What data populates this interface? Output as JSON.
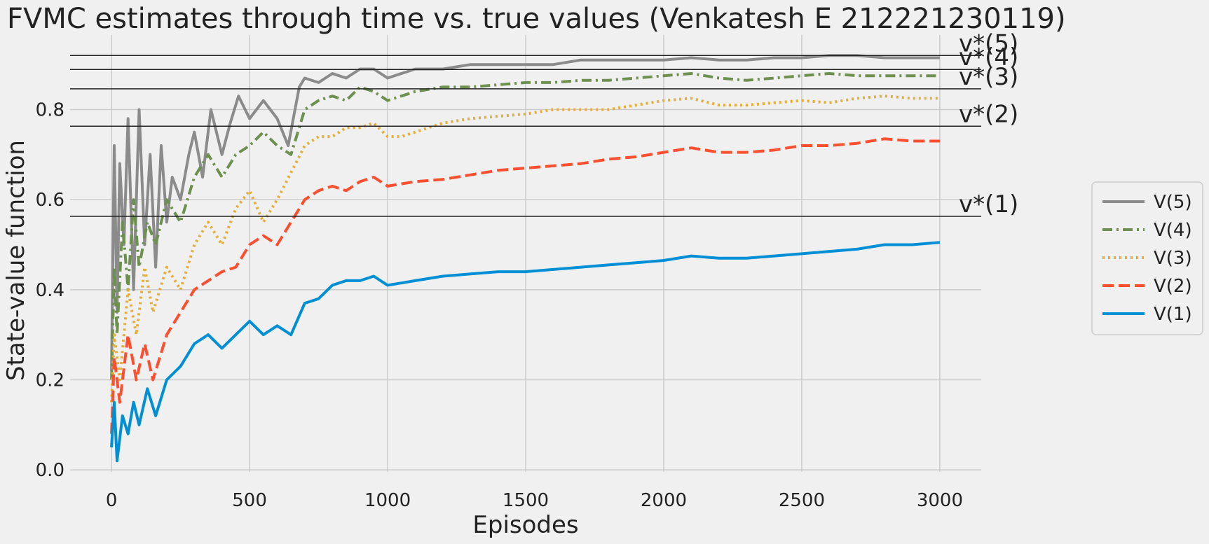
{
  "chart_data": {
    "type": "line",
    "title": "FVMC estimates through time vs. true values  (Venkatesh E 212221230119)",
    "xlabel": "Episodes",
    "ylabel": "State-value function",
    "xlim": [
      -150,
      3150
    ],
    "ylim": [
      -0.02,
      0.95
    ],
    "xticks": [
      0,
      500,
      1000,
      1500,
      2000,
      2500,
      3000
    ],
    "yticks": [
      0.0,
      0.2,
      0.4,
      0.6,
      0.8
    ],
    "grid": true,
    "legend_position": "right",
    "colors": {
      "background": "#f0f0f0",
      "grid": "#cbcbcb",
      "reference": "#222222"
    },
    "reference_lines": [
      {
        "label": "v*(5)",
        "y": 0.92
      },
      {
        "label": "v*(4)",
        "y": 0.889
      },
      {
        "label": "v*(3)",
        "y": 0.846
      },
      {
        "label": "v*(2)",
        "y": 0.763
      },
      {
        "label": "v*(1)",
        "y": 0.563
      }
    ],
    "series": [
      {
        "name": "V(5)",
        "color": "#8b8b8b",
        "dash": "solid",
        "points": [
          [
            0,
            0.22
          ],
          [
            10,
            0.72
          ],
          [
            20,
            0.35
          ],
          [
            30,
            0.68
          ],
          [
            45,
            0.5
          ],
          [
            60,
            0.78
          ],
          [
            80,
            0.4
          ],
          [
            100,
            0.8
          ],
          [
            120,
            0.5
          ],
          [
            140,
            0.7
          ],
          [
            160,
            0.45
          ],
          [
            180,
            0.72
          ],
          [
            200,
            0.55
          ],
          [
            220,
            0.65
          ],
          [
            250,
            0.6
          ],
          [
            280,
            0.7
          ],
          [
            300,
            0.75
          ],
          [
            330,
            0.65
          ],
          [
            360,
            0.8
          ],
          [
            400,
            0.7
          ],
          [
            430,
            0.77
          ],
          [
            460,
            0.83
          ],
          [
            500,
            0.78
          ],
          [
            550,
            0.82
          ],
          [
            600,
            0.78
          ],
          [
            640,
            0.72
          ],
          [
            680,
            0.85
          ],
          [
            700,
            0.87
          ],
          [
            750,
            0.86
          ],
          [
            800,
            0.88
          ],
          [
            850,
            0.87
          ],
          [
            900,
            0.89
          ],
          [
            950,
            0.89
          ],
          [
            1000,
            0.87
          ],
          [
            1050,
            0.88
          ],
          [
            1100,
            0.89
          ],
          [
            1200,
            0.89
          ],
          [
            1300,
            0.9
          ],
          [
            1400,
            0.9
          ],
          [
            1500,
            0.9
          ],
          [
            1600,
            0.9
          ],
          [
            1700,
            0.91
          ],
          [
            1800,
            0.91
          ],
          [
            1900,
            0.91
          ],
          [
            2000,
            0.91
          ],
          [
            2100,
            0.915
          ],
          [
            2200,
            0.91
          ],
          [
            2300,
            0.91
          ],
          [
            2400,
            0.915
          ],
          [
            2500,
            0.915
          ],
          [
            2600,
            0.92
          ],
          [
            2700,
            0.92
          ],
          [
            2800,
            0.915
          ],
          [
            2900,
            0.915
          ],
          [
            3000,
            0.915
          ]
        ]
      },
      {
        "name": "V(4)",
        "color": "#6d904f",
        "dash": "dashdot",
        "points": [
          [
            0,
            0.2
          ],
          [
            10,
            0.45
          ],
          [
            20,
            0.3
          ],
          [
            40,
            0.55
          ],
          [
            60,
            0.4
          ],
          [
            80,
            0.6
          ],
          [
            100,
            0.45
          ],
          [
            130,
            0.55
          ],
          [
            160,
            0.5
          ],
          [
            200,
            0.6
          ],
          [
            250,
            0.55
          ],
          [
            300,
            0.65
          ],
          [
            350,
            0.7
          ],
          [
            400,
            0.65
          ],
          [
            450,
            0.7
          ],
          [
            500,
            0.72
          ],
          [
            550,
            0.75
          ],
          [
            600,
            0.72
          ],
          [
            650,
            0.7
          ],
          [
            700,
            0.8
          ],
          [
            750,
            0.82
          ],
          [
            800,
            0.83
          ],
          [
            850,
            0.82
          ],
          [
            900,
            0.85
          ],
          [
            950,
            0.84
          ],
          [
            1000,
            0.82
          ],
          [
            1050,
            0.83
          ],
          [
            1100,
            0.84
          ],
          [
            1200,
            0.85
          ],
          [
            1300,
            0.85
          ],
          [
            1400,
            0.855
          ],
          [
            1500,
            0.86
          ],
          [
            1600,
            0.86
          ],
          [
            1700,
            0.865
          ],
          [
            1800,
            0.865
          ],
          [
            1900,
            0.87
          ],
          [
            2000,
            0.875
          ],
          [
            2100,
            0.88
          ],
          [
            2200,
            0.87
          ],
          [
            2300,
            0.865
          ],
          [
            2400,
            0.87
          ],
          [
            2500,
            0.875
          ],
          [
            2600,
            0.88
          ],
          [
            2700,
            0.875
          ],
          [
            2800,
            0.875
          ],
          [
            2900,
            0.875
          ],
          [
            3000,
            0.875
          ]
        ]
      },
      {
        "name": "V(3)",
        "color": "#e5ae38",
        "dash": "dotted",
        "points": [
          [
            0,
            0.15
          ],
          [
            10,
            0.3
          ],
          [
            30,
            0.2
          ],
          [
            60,
            0.4
          ],
          [
            90,
            0.3
          ],
          [
            120,
            0.45
          ],
          [
            150,
            0.35
          ],
          [
            200,
            0.45
          ],
          [
            250,
            0.4
          ],
          [
            300,
            0.5
          ],
          [
            350,
            0.55
          ],
          [
            400,
            0.5
          ],
          [
            450,
            0.58
          ],
          [
            500,
            0.62
          ],
          [
            550,
            0.55
          ],
          [
            600,
            0.6
          ],
          [
            650,
            0.66
          ],
          [
            700,
            0.72
          ],
          [
            750,
            0.74
          ],
          [
            800,
            0.74
          ],
          [
            850,
            0.76
          ],
          [
            900,
            0.76
          ],
          [
            950,
            0.77
          ],
          [
            1000,
            0.74
          ],
          [
            1050,
            0.74
          ],
          [
            1100,
            0.75
          ],
          [
            1200,
            0.77
          ],
          [
            1300,
            0.78
          ],
          [
            1400,
            0.785
          ],
          [
            1500,
            0.79
          ],
          [
            1600,
            0.8
          ],
          [
            1700,
            0.8
          ],
          [
            1800,
            0.8
          ],
          [
            1900,
            0.81
          ],
          [
            2000,
            0.82
          ],
          [
            2100,
            0.825
          ],
          [
            2200,
            0.81
          ],
          [
            2300,
            0.81
          ],
          [
            2400,
            0.815
          ],
          [
            2500,
            0.82
          ],
          [
            2600,
            0.815
          ],
          [
            2700,
            0.825
          ],
          [
            2800,
            0.83
          ],
          [
            2900,
            0.825
          ],
          [
            3000,
            0.825
          ]
        ]
      },
      {
        "name": "V(2)",
        "color": "#fc4f30",
        "dash": "dashed",
        "points": [
          [
            0,
            0.08
          ],
          [
            10,
            0.25
          ],
          [
            30,
            0.15
          ],
          [
            60,
            0.3
          ],
          [
            90,
            0.2
          ],
          [
            120,
            0.28
          ],
          [
            150,
            0.2
          ],
          [
            200,
            0.3
          ],
          [
            250,
            0.35
          ],
          [
            300,
            0.4
          ],
          [
            350,
            0.42
          ],
          [
            400,
            0.44
          ],
          [
            450,
            0.45
          ],
          [
            500,
            0.5
          ],
          [
            550,
            0.52
          ],
          [
            600,
            0.5
          ],
          [
            650,
            0.55
          ],
          [
            700,
            0.6
          ],
          [
            750,
            0.62
          ],
          [
            800,
            0.63
          ],
          [
            850,
            0.62
          ],
          [
            900,
            0.64
          ],
          [
            950,
            0.65
          ],
          [
            1000,
            0.63
          ],
          [
            1050,
            0.635
          ],
          [
            1100,
            0.64
          ],
          [
            1200,
            0.645
          ],
          [
            1300,
            0.655
          ],
          [
            1400,
            0.665
          ],
          [
            1500,
            0.67
          ],
          [
            1600,
            0.675
          ],
          [
            1700,
            0.68
          ],
          [
            1800,
            0.69
          ],
          [
            1900,
            0.695
          ],
          [
            2000,
            0.705
          ],
          [
            2100,
            0.715
          ],
          [
            2200,
            0.705
          ],
          [
            2300,
            0.705
          ],
          [
            2400,
            0.71
          ],
          [
            2500,
            0.72
          ],
          [
            2600,
            0.72
          ],
          [
            2700,
            0.725
          ],
          [
            2800,
            0.735
          ],
          [
            2900,
            0.73
          ],
          [
            3000,
            0.73
          ]
        ]
      },
      {
        "name": "V(1)",
        "color": "#008fd5",
        "dash": "solid",
        "points": [
          [
            0,
            0.05
          ],
          [
            10,
            0.15
          ],
          [
            20,
            0.02
          ],
          [
            40,
            0.12
          ],
          [
            60,
            0.08
          ],
          [
            80,
            0.15
          ],
          [
            100,
            0.1
          ],
          [
            130,
            0.18
          ],
          [
            160,
            0.12
          ],
          [
            200,
            0.2
          ],
          [
            250,
            0.23
          ],
          [
            300,
            0.28
          ],
          [
            350,
            0.3
          ],
          [
            400,
            0.27
          ],
          [
            450,
            0.3
          ],
          [
            500,
            0.33
          ],
          [
            550,
            0.3
          ],
          [
            600,
            0.32
          ],
          [
            650,
            0.3
          ],
          [
            700,
            0.37
          ],
          [
            750,
            0.38
          ],
          [
            800,
            0.41
          ],
          [
            850,
            0.42
          ],
          [
            900,
            0.42
          ],
          [
            950,
            0.43
          ],
          [
            1000,
            0.41
          ],
          [
            1050,
            0.415
          ],
          [
            1100,
            0.42
          ],
          [
            1200,
            0.43
          ],
          [
            1300,
            0.435
          ],
          [
            1400,
            0.44
          ],
          [
            1500,
            0.44
          ],
          [
            1600,
            0.445
          ],
          [
            1700,
            0.45
          ],
          [
            1800,
            0.455
          ],
          [
            1900,
            0.46
          ],
          [
            2000,
            0.465
          ],
          [
            2100,
            0.475
          ],
          [
            2200,
            0.47
          ],
          [
            2300,
            0.47
          ],
          [
            2400,
            0.475
          ],
          [
            2500,
            0.48
          ],
          [
            2600,
            0.485
          ],
          [
            2700,
            0.49
          ],
          [
            2800,
            0.5
          ],
          [
            2900,
            0.5
          ],
          [
            3000,
            0.505
          ]
        ]
      }
    ]
  }
}
